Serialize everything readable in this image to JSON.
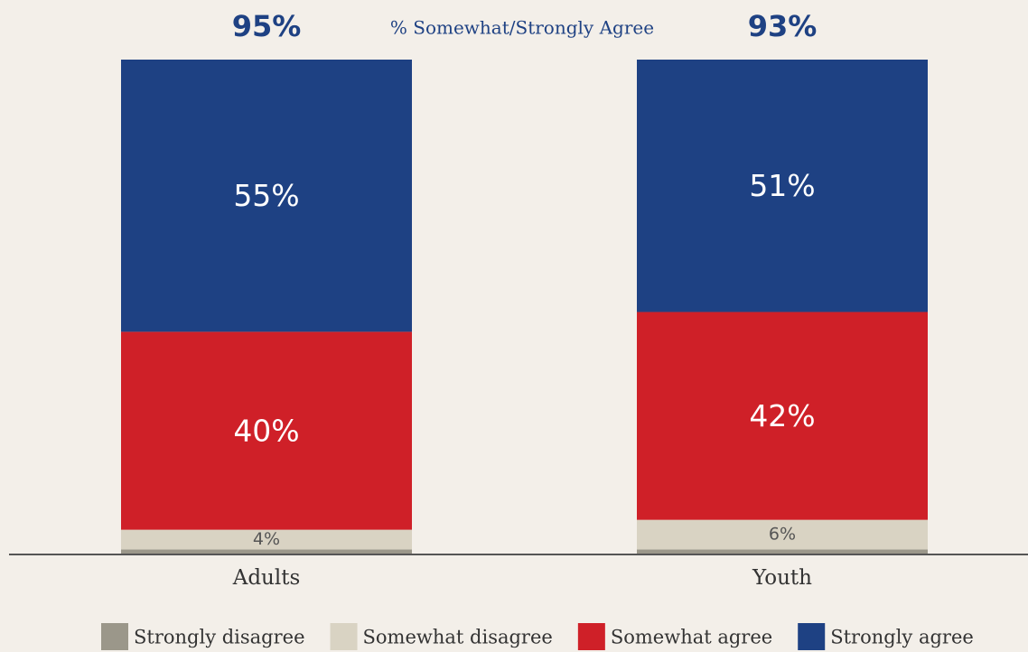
{
  "chart_data": {
    "type": "stacked_bar",
    "categories": [
      "Adults",
      "Youth"
    ],
    "series": [
      {
        "name": "Strongly disagree",
        "color": "#9b978a",
        "values": [
          1,
          1
        ]
      },
      {
        "name": "Somewhat disagree",
        "color": "#d9d3c3",
        "values": [
          4,
          6
        ],
        "value_labels": [
          "4%",
          "6%"
        ]
      },
      {
        "name": "Somewhat agree",
        "color": "#cf2028",
        "values": [
          40,
          42
        ],
        "value_labels": [
          "40%",
          "42%"
        ]
      },
      {
        "name": "Strongly agree",
        "color": "#1e4183",
        "values": [
          55,
          51
        ],
        "value_labels": [
          "55%",
          "51%"
        ]
      }
    ],
    "totals": {
      "label": "% Somewhat/Strongly Agree",
      "values": [
        95,
        93
      ],
      "value_labels": [
        "95%",
        "93%"
      ]
    },
    "ylim": [
      0,
      100
    ]
  }
}
